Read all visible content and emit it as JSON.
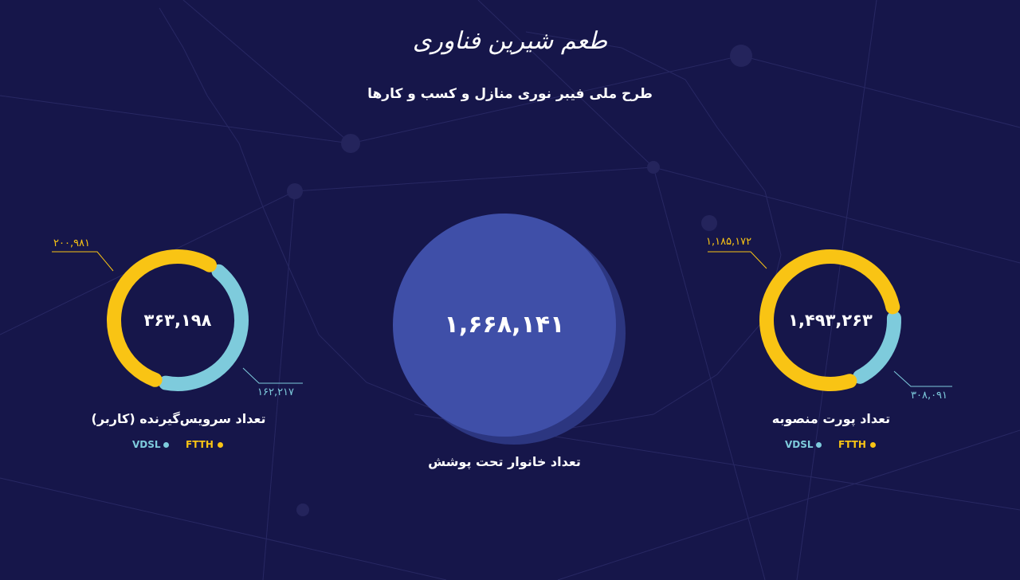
{
  "logo_text": "طعم شیرین فناوری",
  "title": "طرح ملی فیبر نوری منازل و کسب و کارها",
  "colors": {
    "background": "#16164a",
    "ftth": "#f9c414",
    "vdsl": "#7ecbdc",
    "circle": "#3f4fa8"
  },
  "center": {
    "value": "۱,۶۶۸,۱۴۱",
    "label": "تعداد خانوار تحت پوشش"
  },
  "left": {
    "total": "۳۶۳,۱۹۸",
    "label": "تعداد سرویس‌گیرنده (کاربر)",
    "ftth": "۲۰۰,۹۸۱",
    "vdsl": "۱۶۲,۲۱۷",
    "ftth_value": 200981,
    "vdsl_value": 162217,
    "legend": {
      "ftth": "FTTH",
      "vdsl": "VDSL"
    }
  },
  "right": {
    "total": "۱,۴۹۳,۲۶۳",
    "label": "تعداد پورت منصوبه",
    "ftth": "۱,۱۸۵,۱۷۲",
    "vdsl": "۳۰۸,۰۹۱",
    "ftth_value": 1185172,
    "vdsl_value": 308091,
    "legend": {
      "ftth": "FTTH",
      "vdsl": "VDSL"
    }
  }
}
